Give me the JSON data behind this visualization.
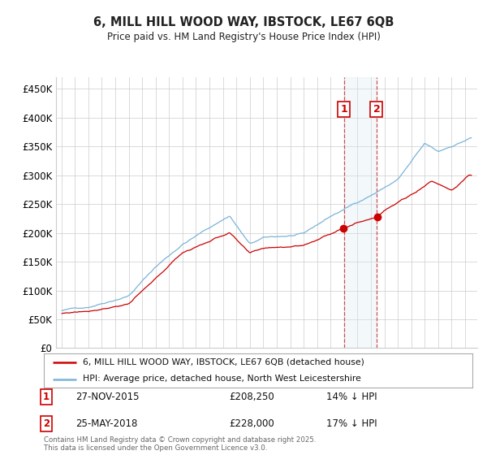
{
  "title_line1": "6, MILL HILL WOOD WAY, IBSTOCK, LE67 6QB",
  "title_line2": "Price paid vs. HM Land Registry's House Price Index (HPI)",
  "ylim": [
    0,
    470000
  ],
  "yticks": [
    0,
    50000,
    100000,
    150000,
    200000,
    250000,
    300000,
    350000,
    400000,
    450000
  ],
  "ytick_labels": [
    "£0",
    "£50K",
    "£100K",
    "£150K",
    "£200K",
    "£250K",
    "£300K",
    "£350K",
    "£400K",
    "£450K"
  ],
  "hpi_color": "#7ab4d8",
  "price_color": "#cc0000",
  "marker1_x": 2016.0,
  "marker1_price": 208250,
  "marker1_hpi": 242000,
  "marker1_date": "27-NOV-2015",
  "marker1_pct": "14% ↓ HPI",
  "marker2_x": 2018.42,
  "marker2_price": 228000,
  "marker2_hpi": 274000,
  "marker2_date": "25-MAY-2018",
  "marker2_pct": "17% ↓ HPI",
  "legend_entry1": "6, MILL HILL WOOD WAY, IBSTOCK, LE67 6QB (detached house)",
  "legend_entry2": "HPI: Average price, detached house, North West Leicestershire",
  "footnote": "Contains HM Land Registry data © Crown copyright and database right 2025.\nThis data is licensed under the Open Government Licence v3.0.",
  "bg_color": "#ffffff",
  "grid_color": "#cccccc",
  "shade_color": "#daeaf5"
}
